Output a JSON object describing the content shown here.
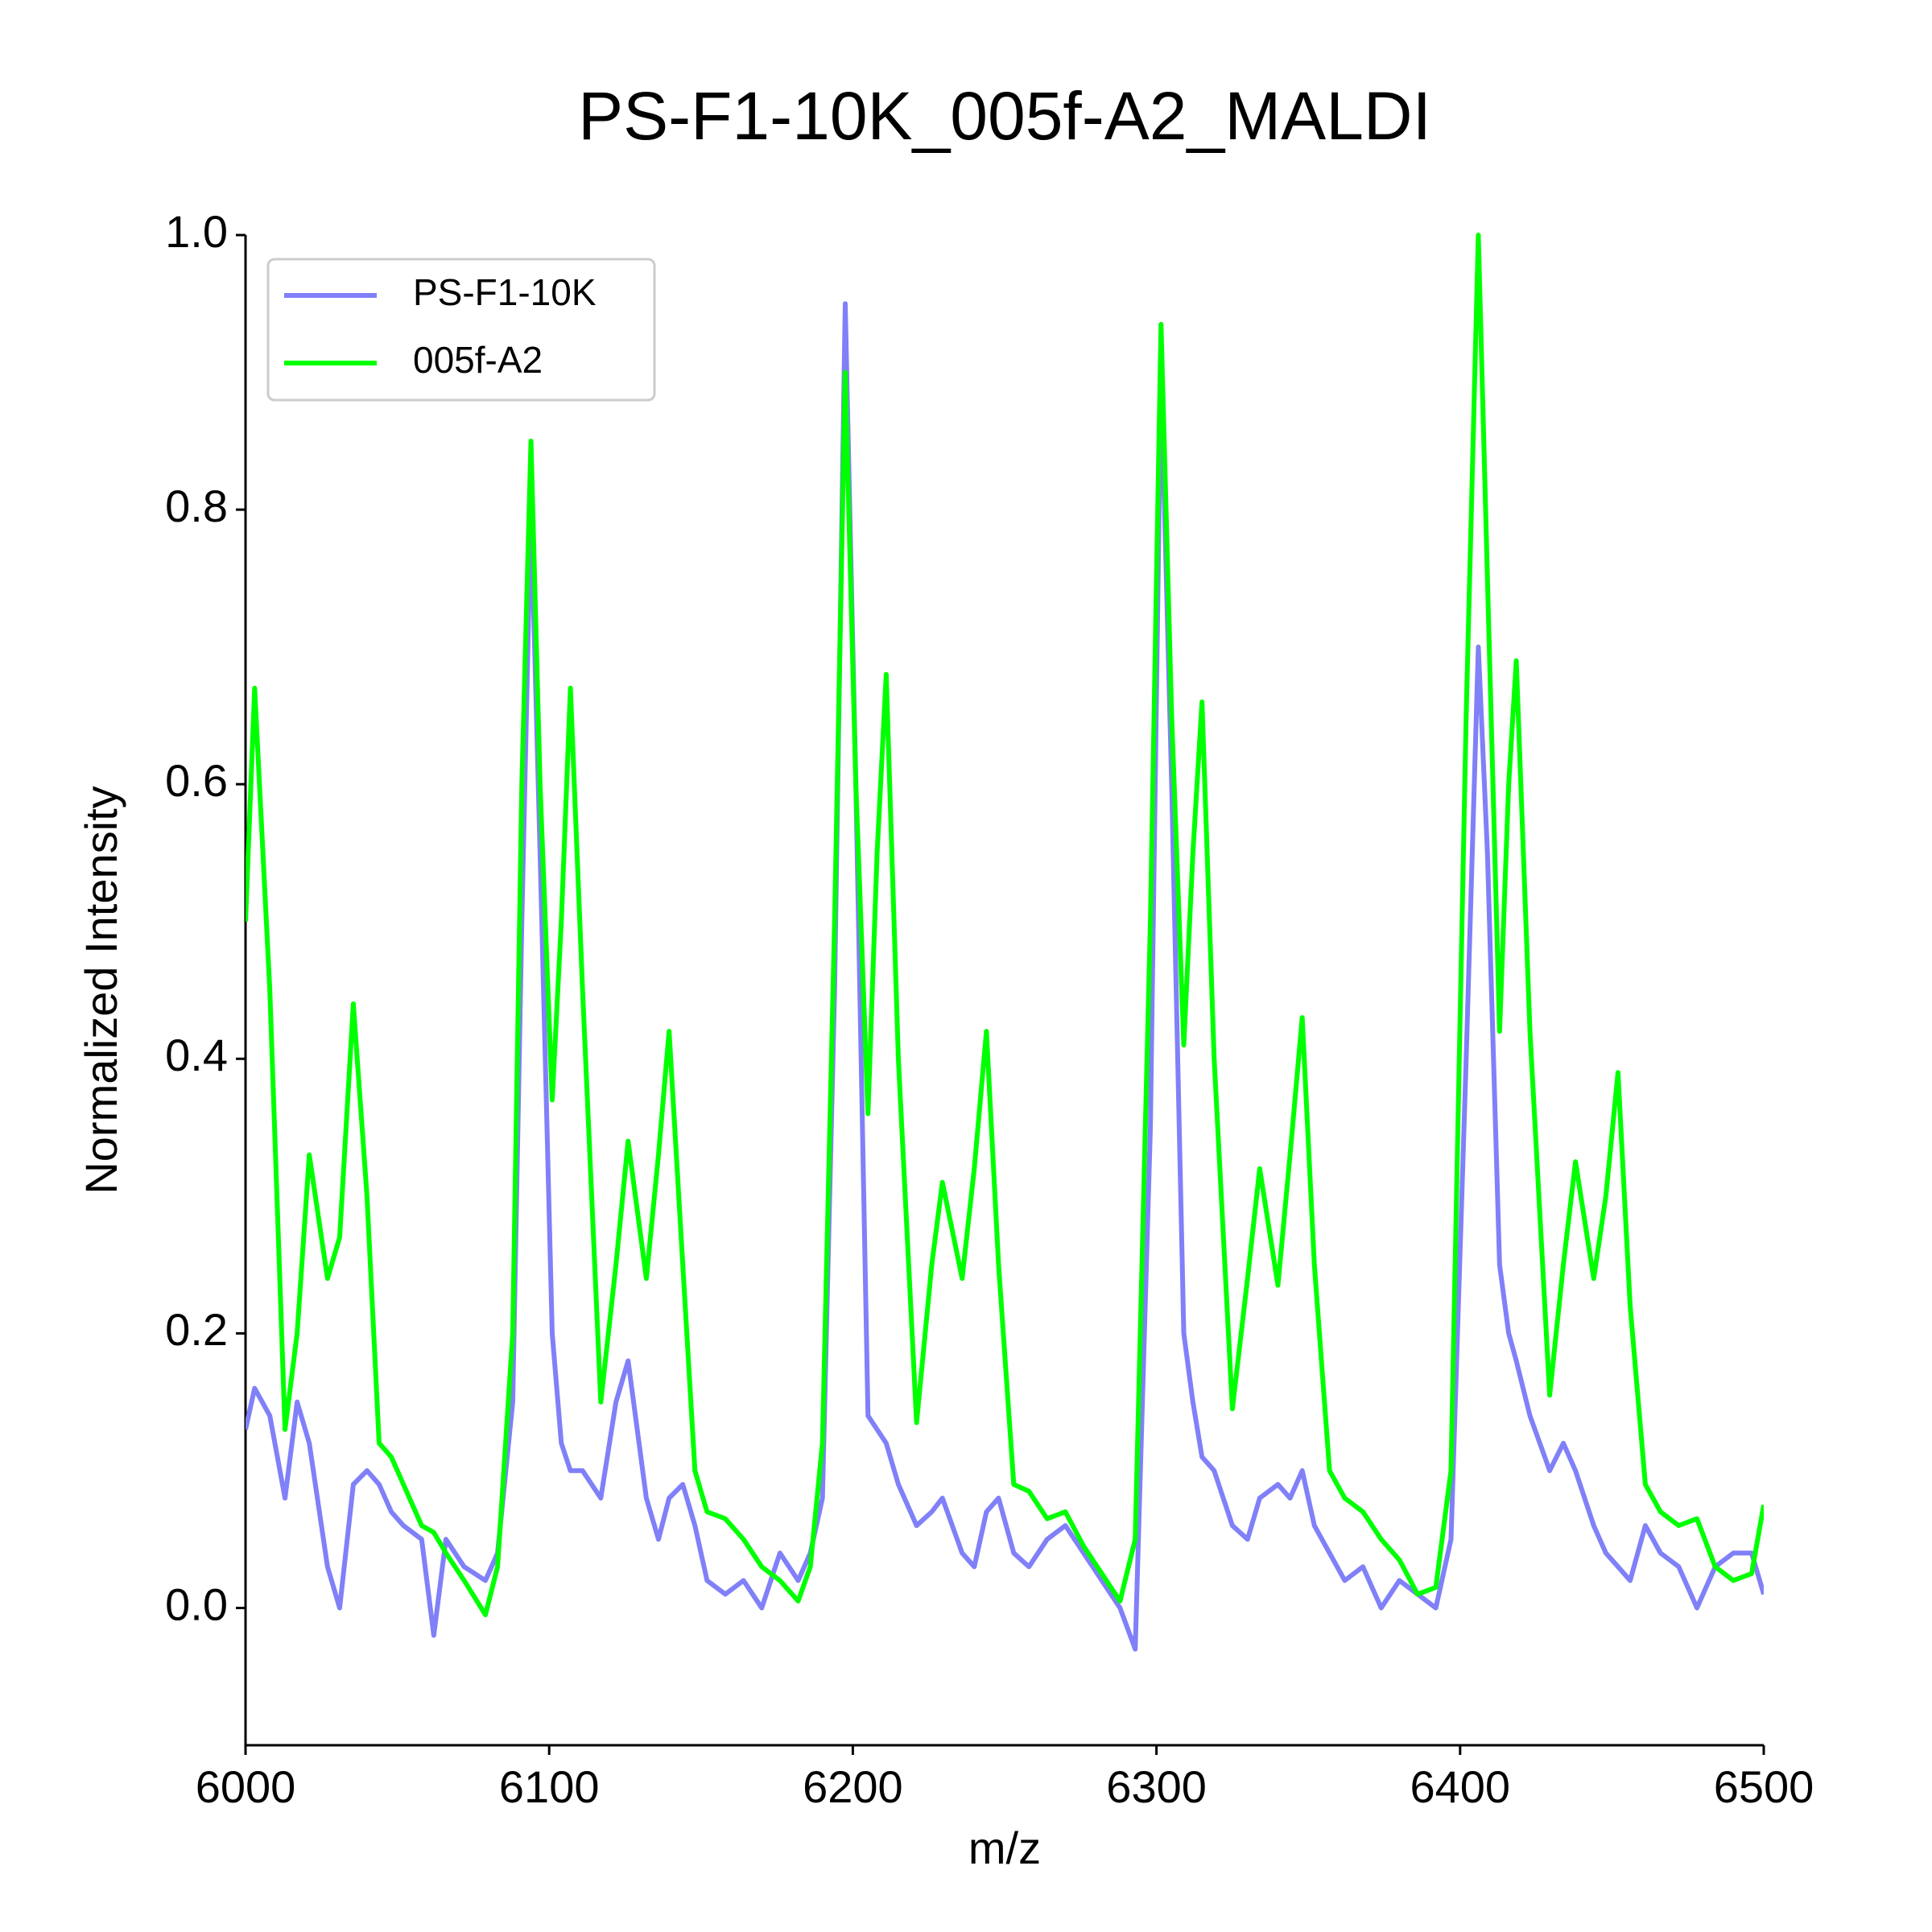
{
  "chart_data": {
    "type": "line",
    "title": "PS-F1-10K_005f-A2_MALDI",
    "x_label": "m/z",
    "y_label": "Normalized Intensity",
    "x": [
      6000,
      6003,
      6008,
      6013,
      6017,
      6021,
      6027,
      6031,
      6035.5,
      6040,
      6044,
      6048,
      6052,
      6058,
      6062,
      6066,
      6072,
      6079,
      6083,
      6088,
      6091,
      6094,
      6097,
      6101,
      6104,
      6107,
      6111,
      6117,
      6122,
      6126,
      6132,
      6136,
      6139.5,
      6144,
      6148,
      6152,
      6158,
      6164,
      6170,
      6176,
      6182,
      6186,
      6190,
      6194,
      6197.5,
      6201,
      6205,
      6208,
      6211,
      6215,
      6221,
      6226,
      6229.5,
      6236,
      6240,
      6244,
      6248,
      6253,
      6258,
      6264,
      6270,
      6276,
      6282,
      6288,
      6293,
      6298,
      6301.5,
      6305,
      6309,
      6312,
      6315,
      6319,
      6325,
      6330,
      6334,
      6340,
      6344,
      6348,
      6352,
      6357,
      6362,
      6368,
      6374,
      6380,
      6386,
      6392,
      6397,
      6402,
      6406,
      6409,
      6413,
      6416,
      6418.5,
      6423,
      6429.5,
      6434,
      6438,
      6444,
      6448,
      6452,
      6456,
      6461,
      6466,
      6472,
      6478,
      6484,
      6490,
      6496,
      6500
    ],
    "series": [
      {
        "name": "PS-F1-10K",
        "color": "#8080f8",
        "values": [
          0.13,
          0.16,
          0.14,
          0.08,
          0.15,
          0.12,
          0.03,
          0.0,
          0.09,
          0.1,
          0.09,
          0.07,
          0.06,
          0.05,
          -0.02,
          0.05,
          0.03,
          0.02,
          0.04,
          0.15,
          0.5,
          0.8,
          0.55,
          0.2,
          0.12,
          0.1,
          0.1,
          0.08,
          0.15,
          0.18,
          0.08,
          0.05,
          0.08,
          0.09,
          0.06,
          0.02,
          0.01,
          0.02,
          0.0,
          0.04,
          0.02,
          0.04,
          0.08,
          0.45,
          0.95,
          0.6,
          0.14,
          0.13,
          0.12,
          0.09,
          0.06,
          0.07,
          0.08,
          0.04,
          0.03,
          0.07,
          0.08,
          0.04,
          0.03,
          0.05,
          0.06,
          0.04,
          0.02,
          0.0,
          -0.03,
          0.35,
          0.9,
          0.6,
          0.2,
          0.15,
          0.11,
          0.1,
          0.06,
          0.05,
          0.08,
          0.09,
          0.08,
          0.1,
          0.06,
          0.04,
          0.02,
          0.03,
          0.0,
          0.02,
          0.01,
          0.0,
          0.05,
          0.4,
          0.7,
          0.55,
          0.25,
          0.2,
          0.18,
          0.14,
          0.1,
          0.12,
          0.1,
          0.06,
          0.04,
          0.03,
          0.02,
          0.06,
          0.04,
          0.03,
          0.0,
          0.03,
          0.04,
          0.04,
          0.01
        ]
      },
      {
        "name": "005f-A2",
        "color": "#00ff00",
        "values": [
          0.5,
          0.67,
          0.45,
          0.13,
          0.2,
          0.33,
          0.24,
          0.27,
          0.44,
          0.3,
          0.12,
          0.11,
          0.09,
          0.06,
          0.055,
          0.04,
          0.02,
          -0.005,
          0.03,
          0.2,
          0.6,
          0.85,
          0.6,
          0.37,
          0.5,
          0.67,
          0.45,
          0.15,
          0.25,
          0.34,
          0.24,
          0.33,
          0.42,
          0.25,
          0.1,
          0.07,
          0.065,
          0.05,
          0.03,
          0.02,
          0.005,
          0.03,
          0.12,
          0.5,
          0.9,
          0.6,
          0.36,
          0.55,
          0.68,
          0.4,
          0.135,
          0.25,
          0.31,
          0.24,
          0.32,
          0.42,
          0.25,
          0.09,
          0.085,
          0.065,
          0.07,
          0.045,
          0.025,
          0.005,
          0.05,
          0.5,
          0.935,
          0.65,
          0.41,
          0.55,
          0.66,
          0.4,
          0.145,
          0.24,
          0.32,
          0.235,
          0.33,
          0.43,
          0.25,
          0.1,
          0.08,
          0.07,
          0.05,
          0.035,
          0.01,
          0.015,
          0.1,
          0.65,
          1.0,
          0.75,
          0.42,
          0.6,
          0.69,
          0.42,
          0.155,
          0.25,
          0.325,
          0.24,
          0.3,
          0.39,
          0.22,
          0.09,
          0.07,
          0.06,
          0.065,
          0.03,
          0.02,
          0.025,
          0.075
        ]
      }
    ],
    "xlim": [
      6000,
      6500
    ],
    "ylim": [
      -0.1,
      1.0
    ],
    "xticks": [
      6000,
      6100,
      6200,
      6300,
      6400,
      6500
    ],
    "yticks": [
      {
        "value": 0,
        "label": "0.0"
      },
      0.2,
      0.4,
      0.6,
      0.8,
      {
        "value": 1,
        "label": "1.0"
      }
    ],
    "grid": false,
    "legend": "upper left"
  }
}
